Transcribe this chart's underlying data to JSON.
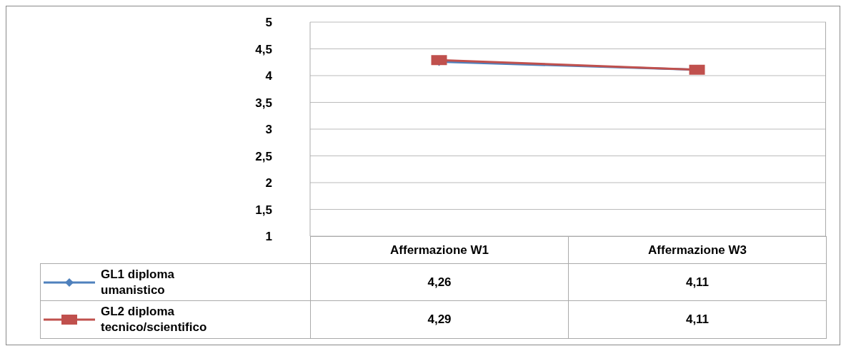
{
  "chart_data": {
    "type": "line",
    "categories": [
      "Affermazione W1",
      "Affermazione W3"
    ],
    "series": [
      {
        "name": "GL1 diploma umanistico",
        "color": "#4f81bd",
        "values": [
          4.26,
          4.11
        ],
        "value_labels": [
          "4,26",
          "4,11"
        ],
        "marker": "diamond"
      },
      {
        "name": "GL2 diploma tecnico/scientifico",
        "color": "#c0504d",
        "values": [
          4.29,
          4.11
        ],
        "value_labels": [
          "4,29",
          "4,11"
        ],
        "marker": "square"
      }
    ],
    "ylim": [
      1,
      5
    ],
    "yticks": [
      1,
      {
        "value": 1.5,
        "label": "1,5"
      },
      2,
      {
        "value": 2.5,
        "label": "2,5"
      },
      3,
      {
        "value": 3.5,
        "label": "3,5"
      },
      4,
      {
        "value": 4.5,
        "label": "4,5"
      },
      5
    ],
    "grid": "y",
    "legend": "bottom left"
  }
}
